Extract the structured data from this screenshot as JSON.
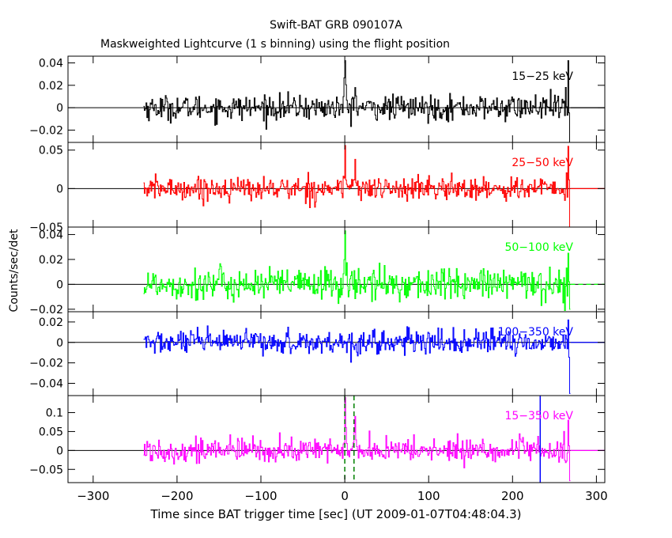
{
  "chart_data": {
    "type": "line",
    "title": "Swift-BAT GRB 090107A",
    "subtitle": "Maskweighted Lightcurve (1 s binning) using the flight position",
    "xlabel": "Time since BAT trigger time [sec] (UT 2009-01-07T04:48:04.3)",
    "ylabel": "Counts/sec/det",
    "xlim": [
      -330,
      310
    ],
    "x_ticks": [
      -300,
      -200,
      -100,
      0,
      100,
      200,
      300
    ],
    "x_tick_labels": [
      "−300",
      "−200",
      "−100",
      "0",
      "100",
      "200",
      "300"
    ],
    "data_range_x": [
      -240,
      268
    ],
    "grid": false,
    "panels": [
      {
        "name": "15-25 keV",
        "label": "15−25 keV",
        "color": "#000000",
        "ylim": [
          -0.031,
          0.046
        ],
        "y_ticks": [
          -0.02,
          0,
          0.02,
          0.04
        ],
        "y_tick_labels": [
          "−0.02",
          "0",
          "0.02",
          "0.04"
        ],
        "noise_sigma": 0.0055,
        "peaks": [
          {
            "t": 0,
            "value": 0.042
          },
          {
            "t": 12,
            "value": 0.018
          }
        ],
        "edge_extremes": [
          0.042,
          -0.033
        ]
      },
      {
        "name": "25-50 keV",
        "label": "25−50 keV",
        "color": "#ff0000",
        "ylim": [
          -0.05,
          0.06
        ],
        "y_ticks": [
          -0.05,
          0,
          0.05
        ],
        "y_tick_labels": [
          "−0.05",
          "0",
          "0.05"
        ],
        "noise_sigma": 0.0075,
        "peaks": [
          {
            "t": 0,
            "value": 0.056
          },
          {
            "t": 12,
            "value": 0.038
          }
        ],
        "edge_extremes": [
          0.055,
          -0.05
        ]
      },
      {
        "name": "50-100 keV",
        "label": "50−100 keV",
        "color": "#00ff00",
        "ylim": [
          -0.022,
          0.046
        ],
        "y_ticks": [
          -0.02,
          0,
          0.02,
          0.04
        ],
        "y_tick_labels": [
          "−0.02",
          "0",
          "0.02",
          "0.04"
        ],
        "noise_sigma": 0.0065,
        "peaks": [
          {
            "t": 0,
            "value": 0.043
          }
        ],
        "edge_extremes": [
          0.025,
          -0.02
        ]
      },
      {
        "name": "100-350 keV",
        "label": "100−350 keV",
        "color": "#0000ff",
        "ylim": [
          -0.052,
          0.03
        ],
        "y_ticks": [
          -0.04,
          -0.02,
          0,
          0.02
        ],
        "y_tick_labels": [
          "−0.04",
          "−0.02",
          "0",
          "0.02"
        ],
        "noise_sigma": 0.0058,
        "peaks": [],
        "edge_extremes": [
          0.022,
          -0.05
        ]
      },
      {
        "name": "15-350 keV",
        "label": "15−350 keV",
        "color": "#ff00ff",
        "ylim": [
          -0.085,
          0.145
        ],
        "y_ticks": [
          -0.05,
          0,
          0.05,
          0.1
        ],
        "y_tick_labels": [
          "−0.05",
          "0",
          "0.05",
          "0.1"
        ],
        "noise_sigma": 0.016,
        "peaks": [
          {
            "t": 0,
            "value": 0.14
          },
          {
            "t": 12,
            "value": 0.09
          }
        ],
        "edge_extremes": [
          0.08,
          -0.08
        ],
        "markers": [
          {
            "t": 0,
            "color": "#008000",
            "style": "dashed"
          },
          {
            "t": 11,
            "color": "#008000",
            "style": "dashed"
          },
          {
            "t": 233,
            "color": "#0000ff",
            "style": "solid"
          }
        ]
      }
    ]
  }
}
